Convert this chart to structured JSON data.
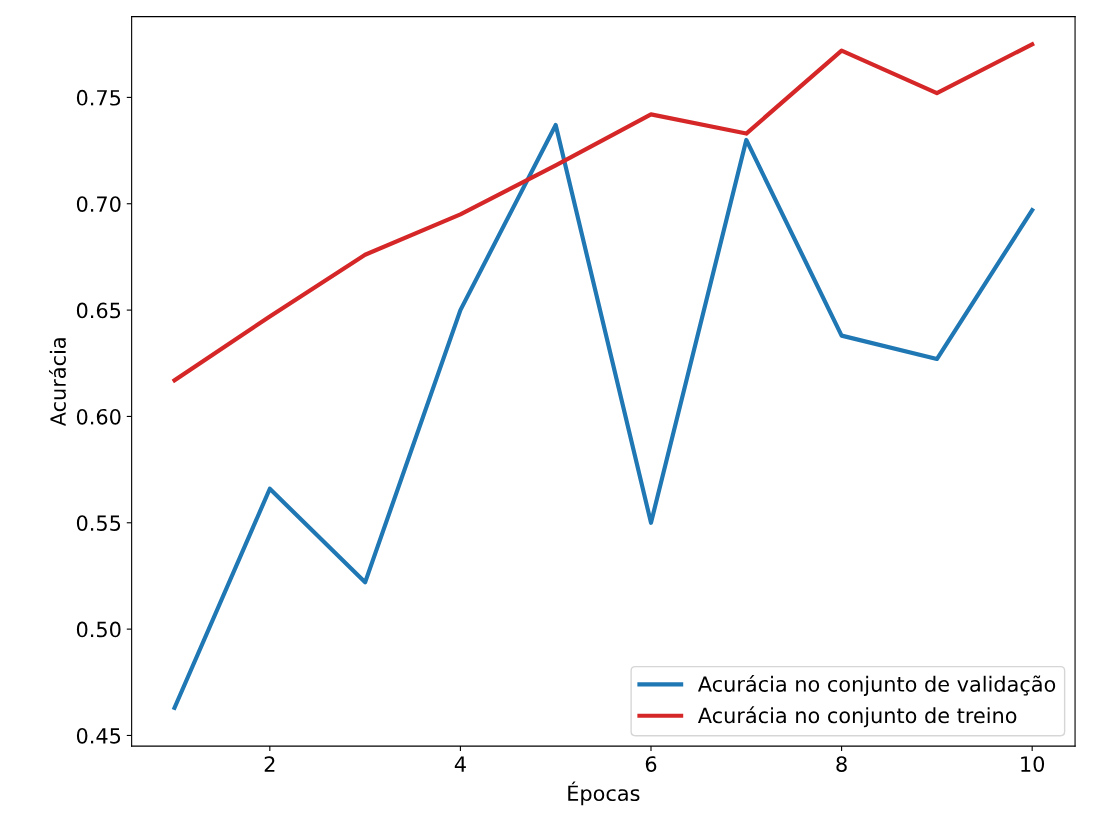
{
  "chart_data": {
    "type": "line",
    "xlabel": "Épocas",
    "ylabel": "Acurácia",
    "x": [
      1,
      2,
      3,
      4,
      5,
      6,
      7,
      8,
      9,
      10
    ],
    "series": [
      {
        "name": "Acurácia no conjunto de validação",
        "color": "#1f77b4",
        "values": [
          0.463,
          0.566,
          0.522,
          0.65,
          0.737,
          0.55,
          0.73,
          0.638,
          0.627,
          0.697
        ]
      },
      {
        "name": "Acurácia no conjunto de treino",
        "color": "#d62728",
        "values": [
          0.617,
          0.647,
          0.676,
          0.695,
          0.718,
          0.742,
          0.733,
          0.772,
          0.752,
          0.775
        ]
      }
    ],
    "xlim": [
      0.55,
      10.45
    ],
    "xticks": [
      2,
      4,
      6,
      8,
      10
    ],
    "ylim": [
      0.445,
      0.788
    ],
    "yticks": [
      {
        "value": 0.45,
        "label": "0.45"
      },
      {
        "value": 0.5,
        "label": "0.50"
      },
      {
        "value": 0.55,
        "label": "0.55"
      },
      {
        "value": 0.6,
        "label": "0.60"
      },
      {
        "value": 0.65,
        "label": "0.65"
      },
      {
        "value": 0.7,
        "label": "0.70"
      },
      {
        "value": 0.75,
        "label": "0.75"
      }
    ],
    "grid": false,
    "legend": "bottom right",
    "marker": "none",
    "line_style": "solid"
  }
}
